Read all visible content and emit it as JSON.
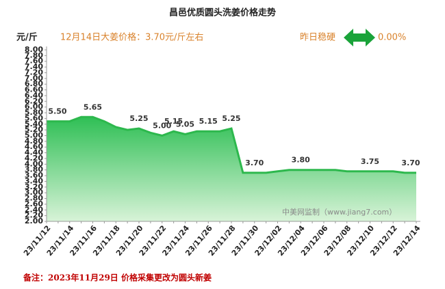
{
  "chart_data": {
    "type": "area",
    "title": "昌邑优质圆头洗姜价格走势",
    "y_label": "元/斤",
    "subtitle": "12月14日大姜价格：3.70元/斤左右",
    "status_text": "昨日稳硬",
    "change_text": "0.00%",
    "watermark": "中美网监制（www.jiang7.com）",
    "note": "备注：2023年11月29日 价格采集更改为圆头新姜",
    "color": "#2db84d",
    "categories": [
      "23/11/12",
      null,
      "23/11/14",
      null,
      "23/11/16",
      null,
      "23/11/18",
      null,
      "23/11/20",
      null,
      "23/11/22",
      null,
      "23/11/24",
      null,
      "23/11/26",
      null,
      "23/11/28",
      null,
      "23/11/30",
      null,
      "23/12/02",
      null,
      "23/12/04",
      null,
      "23/12/06",
      null,
      "23/12/08",
      null,
      "23/12/10",
      null,
      "23/12/12",
      null,
      "23/12/14"
    ],
    "values": [
      5.5,
      5.5,
      5.5,
      5.65,
      5.65,
      5.5,
      5.3,
      5.2,
      5.25,
      5.1,
      5.0,
      5.15,
      5.05,
      5.15,
      5.15,
      5.15,
      5.25,
      3.7,
      3.7,
      3.7,
      3.75,
      3.8,
      3.8,
      3.8,
      3.8,
      3.8,
      3.75,
      3.75,
      3.75,
      3.75,
      3.75,
      3.7,
      3.7
    ],
    "value_labels": [
      "5.50",
      null,
      null,
      null,
      "5.65",
      null,
      null,
      null,
      "5.25",
      null,
      "5.00",
      "5.15",
      "5.05",
      null,
      "5.15",
      null,
      "5.25",
      null,
      "3.70",
      null,
      null,
      null,
      "3.80",
      null,
      null,
      null,
      null,
      null,
      "3.75",
      null,
      null,
      null,
      "3.70"
    ],
    "ylim": [
      2,
      8
    ],
    "yticks": [
      {
        "value": 2,
        "label": "2.00"
      },
      {
        "value": 2.2,
        "label": "2.20"
      },
      {
        "value": 2.4,
        "label": "2.40"
      },
      {
        "value": 2.6,
        "label": "2.60"
      },
      {
        "value": 2.8,
        "label": "2.80"
      },
      {
        "value": 3,
        "label": "3.00"
      },
      {
        "value": 3.2,
        "label": "3.20"
      },
      {
        "value": 3.4,
        "label": "3.40"
      },
      {
        "value": 3.6,
        "label": "3.60"
      },
      {
        "value": 3.8,
        "label": "3.80"
      },
      {
        "value": 4,
        "label": "4.00"
      },
      {
        "value": 4.2,
        "label": "4.20"
      },
      {
        "value": 4.4,
        "label": "4.40"
      },
      {
        "value": 4.6,
        "label": "4.60"
      },
      {
        "value": 4.8,
        "label": "4.80"
      },
      {
        "value": 5,
        "label": "5.00"
      },
      {
        "value": 5.2,
        "label": "5.20"
      },
      {
        "value": 5.4,
        "label": "5.40"
      },
      {
        "value": 5.6,
        "label": "5.60"
      },
      {
        "value": 5.8,
        "label": "5.80"
      },
      {
        "value": 6,
        "label": "6.00"
      },
      {
        "value": 6.2,
        "label": "6.20"
      },
      {
        "value": 6.4,
        "label": "6.40"
      },
      {
        "value": 6.6,
        "label": "6.60"
      },
      {
        "value": 6.8,
        "label": "6.80"
      },
      {
        "value": 7,
        "label": "7.00"
      },
      {
        "value": 7.2,
        "label": "7.20"
      },
      {
        "value": 7.4,
        "label": "7.40"
      },
      {
        "value": 7.6,
        "label": "7.60"
      },
      {
        "value": 7.8,
        "label": "7.80"
      },
      {
        "value": 8,
        "label": "8.00"
      }
    ]
  }
}
